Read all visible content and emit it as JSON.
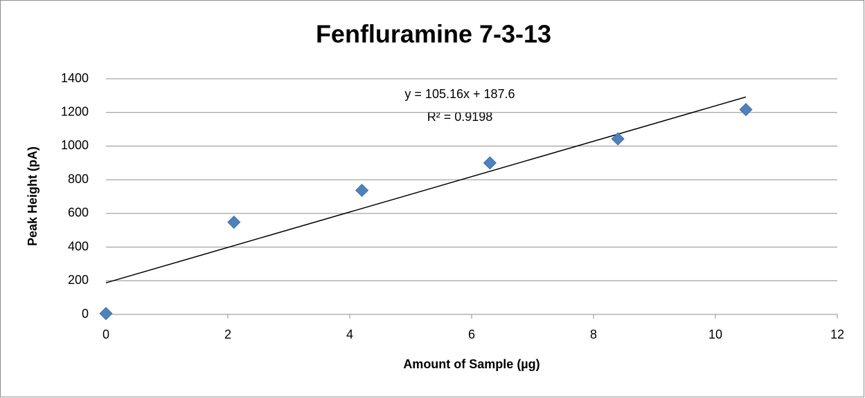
{
  "chart_data": {
    "type": "scatter",
    "title": "Fenfluramine 7-3-13",
    "x_label": "Amount of Sample (µg)",
    "y_label": "Peak Height (pA)",
    "x": [
      0,
      2.1,
      4.2,
      6.3,
      8.4,
      10.5
    ],
    "series": [
      {
        "name": "Peak Height",
        "color": "#4f81bd",
        "values": [
          5,
          548,
          737,
          900,
          1043,
          1217
        ]
      }
    ],
    "trendline": {
      "equation": "y = 105.16x + 187.6",
      "r_squared": "R² = 0.9198",
      "slope": 105.16,
      "intercept": 187.6,
      "color": "#000000"
    },
    "xlim": [
      0,
      12
    ],
    "xticks": [
      0,
      2,
      4,
      6,
      8,
      10,
      12
    ],
    "ylim": [
      0,
      1400
    ],
    "yticks": [
      0,
      200,
      400,
      600,
      800,
      1000,
      1200,
      1400
    ],
    "grid": true
  }
}
